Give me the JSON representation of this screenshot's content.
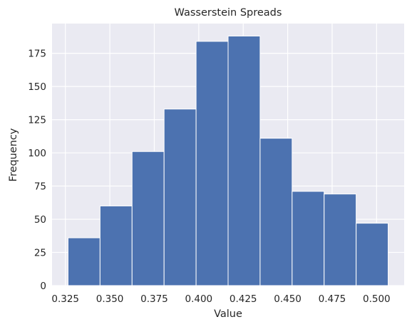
{
  "chart_data": {
    "type": "bar",
    "title": "Wasserstein Spreads",
    "xlabel": "Value",
    "ylabel": "Frequency",
    "bin_edges": [
      0.3265,
      0.3445,
      0.3625,
      0.3805,
      0.3985,
      0.4165,
      0.4345,
      0.4525,
      0.4705,
      0.4885,
      0.5065
    ],
    "values": [
      36,
      60,
      101,
      133,
      184,
      188,
      111,
      71,
      69,
      47
    ],
    "xlim": [
      0.3175,
      0.5155
    ],
    "ylim": [
      0,
      197.4
    ],
    "xticks": [
      0.325,
      0.35,
      0.375,
      0.4,
      0.425,
      0.45,
      0.475,
      0.5
    ],
    "xtick_labels": [
      "0.325",
      "0.350",
      "0.375",
      "0.400",
      "0.425",
      "0.450",
      "0.475",
      "0.500"
    ],
    "yticks": [
      0,
      25,
      50,
      75,
      100,
      125,
      150,
      175
    ],
    "ytick_labels": [
      "0",
      "25",
      "50",
      "75",
      "100",
      "125",
      "150",
      "175"
    ],
    "grid": true,
    "colors": {
      "bar": "#4c72b0",
      "plot_bg": "#eaeaf2",
      "grid": "#ffffff"
    }
  }
}
